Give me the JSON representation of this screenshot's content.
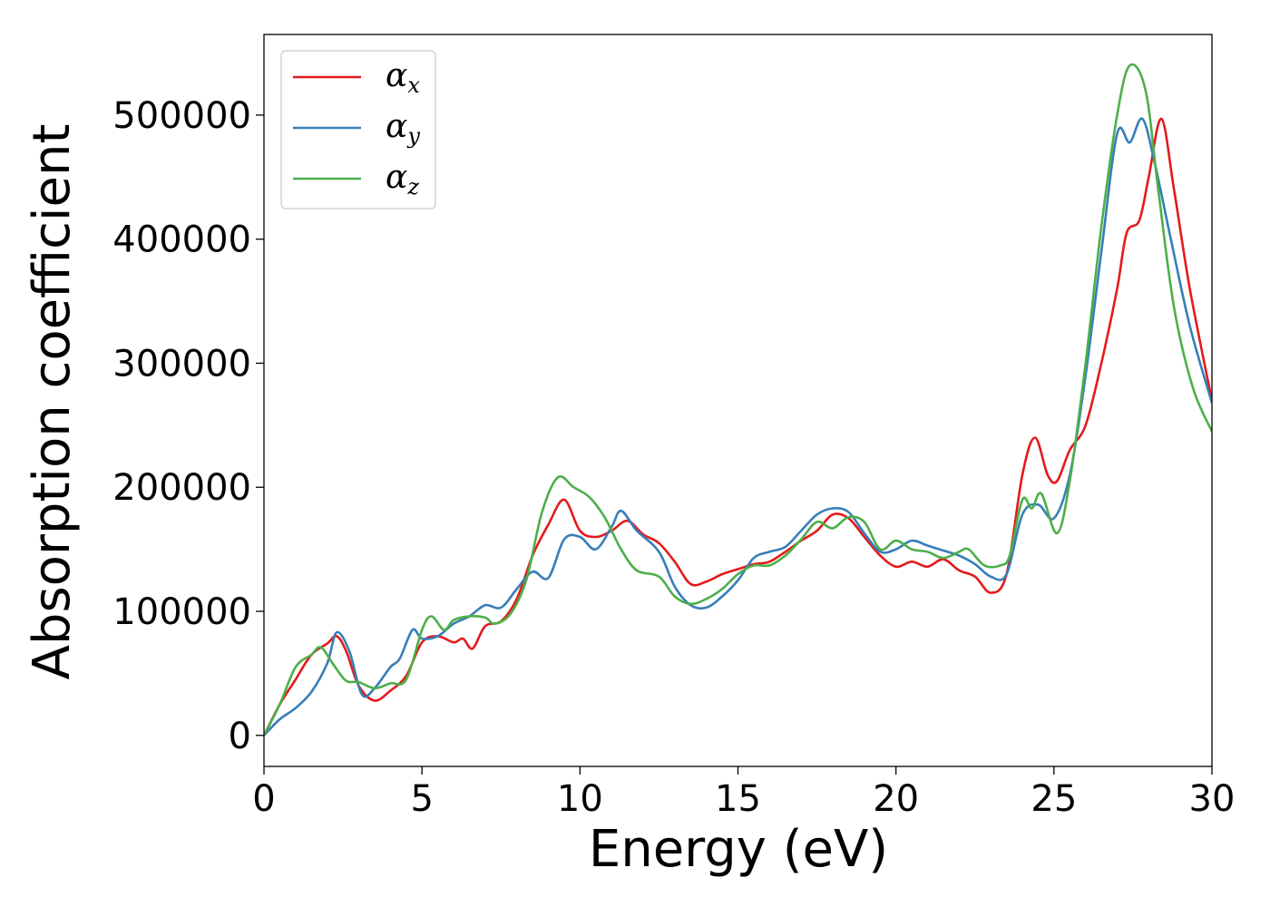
{
  "chart_data": {
    "type": "line",
    "title": "",
    "xlabel": "Energy (eV)",
    "ylabel": "Absorption coefficient",
    "xlim": [
      0,
      30
    ],
    "ylim": [
      -25000,
      565000
    ],
    "xticks": [
      0,
      5,
      10,
      15,
      20,
      25,
      30
    ],
    "yticks": [
      0,
      100000,
      200000,
      300000,
      400000,
      500000
    ],
    "grid": false,
    "legend_position": "top-left",
    "series": [
      {
        "name": "α",
        "name_sub": "x",
        "color": "#e41a1c",
        "points": [
          [
            0,
            0
          ],
          [
            0.5,
            25000
          ],
          [
            1,
            45000
          ],
          [
            1.5,
            65000
          ],
          [
            2,
            74000
          ],
          [
            2.3,
            80000
          ],
          [
            2.6,
            68000
          ],
          [
            3,
            40000
          ],
          [
            3.5,
            28000
          ],
          [
            4,
            36000
          ],
          [
            4.5,
            48000
          ],
          [
            5,
            75000
          ],
          [
            5.5,
            80000
          ],
          [
            6,
            75000
          ],
          [
            6.3,
            78000
          ],
          [
            6.6,
            70000
          ],
          [
            7,
            88000
          ],
          [
            7.5,
            92000
          ],
          [
            8,
            110000
          ],
          [
            8.5,
            145000
          ],
          [
            9,
            170000
          ],
          [
            9.5,
            190000
          ],
          [
            10,
            165000
          ],
          [
            10.5,
            160000
          ],
          [
            11,
            165000
          ],
          [
            11.5,
            173000
          ],
          [
            12,
            162000
          ],
          [
            12.5,
            155000
          ],
          [
            13,
            140000
          ],
          [
            13.5,
            122000
          ],
          [
            14,
            124000
          ],
          [
            14.5,
            130000
          ],
          [
            15,
            134000
          ],
          [
            15.5,
            138000
          ],
          [
            16,
            140000
          ],
          [
            16.5,
            148000
          ],
          [
            17,
            157000
          ],
          [
            17.5,
            165000
          ],
          [
            18,
            178000
          ],
          [
            18.5,
            175000
          ],
          [
            19,
            160000
          ],
          [
            19.5,
            145000
          ],
          [
            20,
            136000
          ],
          [
            20.5,
            140000
          ],
          [
            21,
            136000
          ],
          [
            21.5,
            142000
          ],
          [
            22,
            133000
          ],
          [
            22.5,
            128000
          ],
          [
            23,
            115000
          ],
          [
            23.5,
            130000
          ],
          [
            24,
            210000
          ],
          [
            24.4,
            240000
          ],
          [
            24.8,
            210000
          ],
          [
            25.1,
            205000
          ],
          [
            25.5,
            230000
          ],
          [
            26,
            250000
          ],
          [
            26.5,
            300000
          ],
          [
            27,
            360000
          ],
          [
            27.3,
            405000
          ],
          [
            27.7,
            415000
          ],
          [
            28,
            450000
          ],
          [
            28.4,
            497000
          ],
          [
            28.8,
            440000
          ],
          [
            29.3,
            360000
          ],
          [
            30,
            270000
          ]
        ]
      },
      {
        "name": "α",
        "name_sub": "y",
        "color": "#377eb8",
        "points": [
          [
            0,
            0
          ],
          [
            0.5,
            13000
          ],
          [
            1,
            22000
          ],
          [
            1.5,
            35000
          ],
          [
            2,
            58000
          ],
          [
            2.3,
            83000
          ],
          [
            2.7,
            68000
          ],
          [
            3.1,
            33000
          ],
          [
            3.5,
            38000
          ],
          [
            4,
            55000
          ],
          [
            4.3,
            62000
          ],
          [
            4.7,
            85000
          ],
          [
            5,
            78000
          ],
          [
            5.5,
            80000
          ],
          [
            6,
            90000
          ],
          [
            6.5,
            96000
          ],
          [
            7,
            105000
          ],
          [
            7.5,
            103000
          ],
          [
            8,
            118000
          ],
          [
            8.5,
            132000
          ],
          [
            9,
            127000
          ],
          [
            9.5,
            158000
          ],
          [
            10,
            160000
          ],
          [
            10.5,
            150000
          ],
          [
            11,
            168000
          ],
          [
            11.3,
            181000
          ],
          [
            11.8,
            165000
          ],
          [
            12.5,
            148000
          ],
          [
            13,
            120000
          ],
          [
            13.5,
            105000
          ],
          [
            14,
            103000
          ],
          [
            14.5,
            112000
          ],
          [
            15,
            125000
          ],
          [
            15.5,
            143000
          ],
          [
            16,
            148000
          ],
          [
            16.5,
            152000
          ],
          [
            17,
            165000
          ],
          [
            17.5,
            178000
          ],
          [
            18,
            183000
          ],
          [
            18.5,
            180000
          ],
          [
            19,
            163000
          ],
          [
            19.5,
            148000
          ],
          [
            20,
            150000
          ],
          [
            20.5,
            157000
          ],
          [
            21,
            153000
          ],
          [
            21.5,
            149000
          ],
          [
            22,
            145000
          ],
          [
            22.5,
            138000
          ],
          [
            23,
            128000
          ],
          [
            23.5,
            130000
          ],
          [
            24,
            178000
          ],
          [
            24.5,
            186000
          ],
          [
            25,
            175000
          ],
          [
            25.5,
            210000
          ],
          [
            26,
            290000
          ],
          [
            26.5,
            390000
          ],
          [
            27,
            485000
          ],
          [
            27.4,
            478000
          ],
          [
            27.8,
            497000
          ],
          [
            28.2,
            460000
          ],
          [
            28.7,
            400000
          ],
          [
            29.3,
            330000
          ],
          [
            30,
            268000
          ]
        ]
      },
      {
        "name": "α",
        "name_sub": "z",
        "color": "#4daf4a",
        "points": [
          [
            0,
            0
          ],
          [
            0.5,
            25000
          ],
          [
            1,
            55000
          ],
          [
            1.5,
            65000
          ],
          [
            1.8,
            71000
          ],
          [
            2.2,
            57000
          ],
          [
            2.6,
            44000
          ],
          [
            3,
            43000
          ],
          [
            3.5,
            38000
          ],
          [
            4,
            42000
          ],
          [
            4.5,
            45000
          ],
          [
            5,
            85000
          ],
          [
            5.3,
            96000
          ],
          [
            5.7,
            85000
          ],
          [
            6,
            93000
          ],
          [
            6.5,
            96000
          ],
          [
            7,
            95000
          ],
          [
            7.3,
            90000
          ],
          [
            7.8,
            98000
          ],
          [
            8.3,
            125000
          ],
          [
            8.8,
            180000
          ],
          [
            9.3,
            208000
          ],
          [
            9.8,
            200000
          ],
          [
            10.3,
            192000
          ],
          [
            10.8,
            175000
          ],
          [
            11.3,
            150000
          ],
          [
            11.8,
            133000
          ],
          [
            12.5,
            128000
          ],
          [
            13,
            112000
          ],
          [
            13.5,
            106000
          ],
          [
            14,
            110000
          ],
          [
            14.5,
            118000
          ],
          [
            15,
            130000
          ],
          [
            15.5,
            137000
          ],
          [
            16,
            137000
          ],
          [
            16.5,
            145000
          ],
          [
            17,
            158000
          ],
          [
            17.5,
            172000
          ],
          [
            18,
            167000
          ],
          [
            18.5,
            176000
          ],
          [
            19,
            172000
          ],
          [
            19.5,
            150000
          ],
          [
            20,
            157000
          ],
          [
            20.5,
            150000
          ],
          [
            21,
            148000
          ],
          [
            21.5,
            143000
          ],
          [
            22,
            148000
          ],
          [
            22.3,
            150000
          ],
          [
            22.8,
            137000
          ],
          [
            23.3,
            137000
          ],
          [
            23.6,
            145000
          ],
          [
            24,
            190000
          ],
          [
            24.3,
            183000
          ],
          [
            24.6,
            195000
          ],
          [
            25.1,
            163000
          ],
          [
            25.5,
            205000
          ],
          [
            26,
            300000
          ],
          [
            26.5,
            410000
          ],
          [
            27,
            500000
          ],
          [
            27.4,
            540000
          ],
          [
            27.9,
            520000
          ],
          [
            28.3,
            440000
          ],
          [
            28.8,
            345000
          ],
          [
            29.4,
            280000
          ],
          [
            30,
            245000
          ]
        ]
      }
    ]
  }
}
